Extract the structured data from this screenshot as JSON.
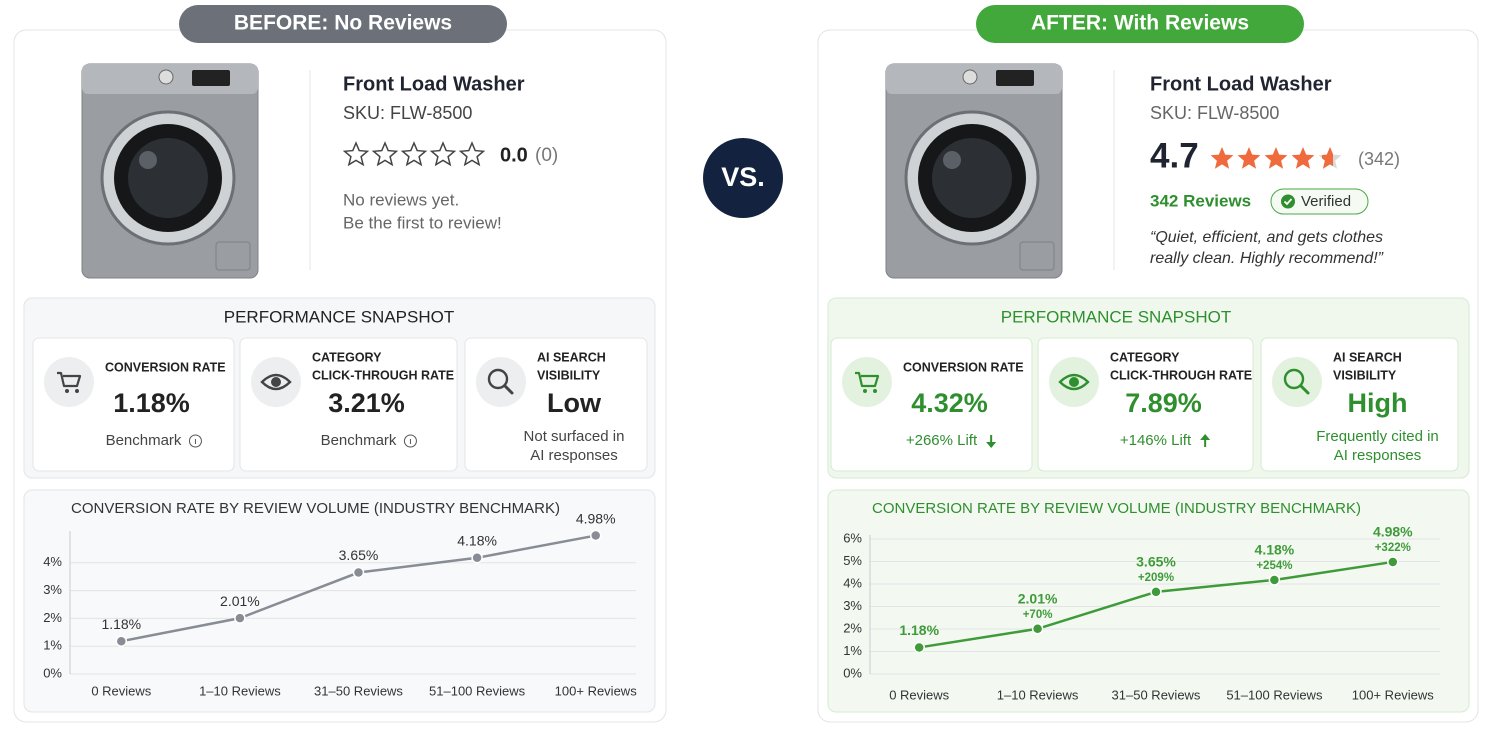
{
  "before": {
    "badge": "BEFORE: No Reviews",
    "product": {
      "name": "Front Load Washer",
      "sku": "SKU: FLW-8500",
      "rating": "0.0",
      "count": "(0)",
      "message": [
        "No reviews yet.",
        "Be the first to review!"
      ]
    },
    "snapshot": {
      "title": "PERFORMANCE SNAPSHOT",
      "metrics": [
        {
          "label": [
            "CONVERSION RATE"
          ],
          "value": "1.18%",
          "note": [
            "Benchmark"
          ]
        },
        {
          "label": [
            "CATEGORY",
            "CLICK-THROUGH RATE"
          ],
          "value": "3.21%",
          "note": [
            "Benchmark"
          ]
        },
        {
          "label": [
            "AI SEARCH",
            "VISIBILITY"
          ],
          "value": "Low",
          "note": [
            "Not surfaced in",
            "AI responses"
          ]
        }
      ]
    }
  },
  "vs": "VS.",
  "after": {
    "badge": "AFTER: With Reviews",
    "product": {
      "name": "Front Load Washer",
      "sku": "SKU: FLW-8500",
      "rating": "4.7",
      "count": "(342)",
      "reviews": "342 Reviews",
      "verified": "Verified",
      "quote": [
        "“Quiet, efficient, and gets clothes",
        "really clean. Highly recommend!”"
      ]
    },
    "snapshot": {
      "title": "PERFORMANCE SNAPSHOT",
      "metrics": [
        {
          "label": [
            "CONVERSION RATE"
          ],
          "value": "4.32%",
          "note": [
            "+266% Lift"
          ]
        },
        {
          "label": [
            "CATEGORY",
            "CLICK-THROUGH RATE"
          ],
          "value": "7.89%",
          "note": [
            "+146% Lift"
          ]
        },
        {
          "label": [
            "AI SEARCH",
            "VISIBILITY"
          ],
          "value": "High",
          "note": [
            "Frequently cited in",
            "AI responses"
          ]
        }
      ]
    }
  },
  "chart_data": [
    {
      "type": "line",
      "title": "CONVERSION RATE BY REVIEW VOLUME (INDUSTRY BENCHMARK)",
      "categories": [
        "0 Reviews",
        "1–10 Reviews",
        "31–50 Reviews",
        "51–100 Reviews",
        "100+ Reviews"
      ],
      "values": [
        1.18,
        2.01,
        3.65,
        4.18,
        4.98
      ],
      "value_labels": [
        "1.18%",
        "2.01%",
        "3.65%",
        "4.18%",
        "4.98%"
      ],
      "color": "#878c95",
      "ylim": [
        0,
        5
      ],
      "yticks": [
        {
          "value": 0,
          "label": "0%"
        },
        {
          "value": 1,
          "label": "1%"
        },
        {
          "value": 2,
          "label": "2%"
        },
        {
          "value": 3,
          "label": "3%"
        },
        {
          "value": 4,
          "label": "4%"
        }
      ],
      "grid": true
    },
    {
      "type": "line",
      "title": "CONVERSION RATE BY REVIEW VOLUME (INDUSTRY BENCHMARK)",
      "categories": [
        "0 Reviews",
        "1–10 Reviews",
        "31–50 Reviews",
        "51–100 Reviews",
        "100+ Reviews"
      ],
      "values": [
        1.18,
        2.01,
        3.65,
        4.18,
        4.98
      ],
      "value_labels": [
        "1.18%",
        "2.01%",
        "3.65%",
        "4.18%",
        "4.98%"
      ],
      "lift_labels": [
        null,
        "+70%",
        "+209%",
        "+254%",
        "+322%"
      ],
      "color": "#3f9b3a",
      "ylim": [
        0,
        6
      ],
      "yticks": [
        {
          "value": 0,
          "label": "0%"
        },
        {
          "value": 1,
          "label": "1%"
        },
        {
          "value": 2,
          "label": "2%"
        },
        {
          "value": 3,
          "label": "3%"
        },
        {
          "value": 4,
          "label": "4%"
        },
        {
          "value": 5,
          "label": "5%"
        },
        {
          "value": 6,
          "label": "6%"
        }
      ],
      "grid": true
    }
  ]
}
